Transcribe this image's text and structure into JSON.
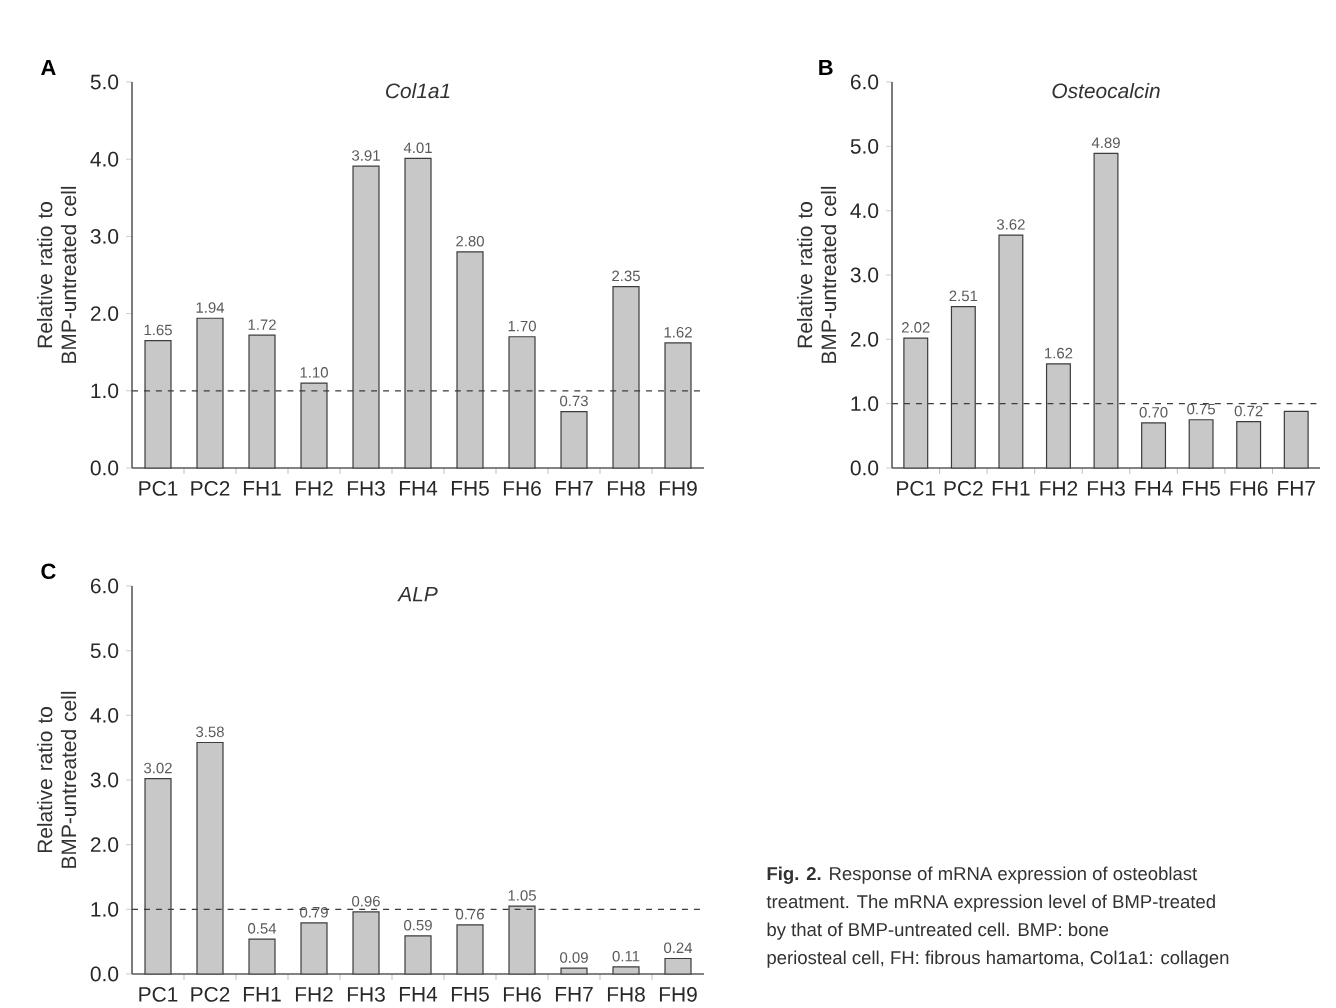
{
  "chart_data": [
    {
      "type": "bar",
      "title": "Col1a1",
      "ylabel": "Relative ratio to BMP-untreated cell",
      "annotations": [
        "A"
      ],
      "color": "#c8c8c8",
      "categories": [
        "PC1",
        "PC2",
        "FH1",
        "FH2",
        "FH3",
        "FH4",
        "FH5",
        "FH6",
        "FH7",
        "FH8",
        "FH9"
      ],
      "values": [
        1.65,
        1.94,
        1.72,
        1.1,
        3.91,
        4.01,
        2.8,
        1.7,
        0.73,
        2.35,
        1.62
      ],
      "value_labels": [
        "1.65",
        "1.94",
        "1.72",
        "1.10",
        "3.91",
        "4.01",
        "2.80",
        "1.70",
        "0.73",
        "2.35",
        "1.62"
      ],
      "ylim": [
        0,
        5
      ],
      "yticks": [
        {
          "value": 0,
          "label": "0.0"
        },
        {
          "value": 1,
          "label": "1.0"
        },
        {
          "value": 2,
          "label": "2.0"
        },
        {
          "value": 3,
          "label": "3.0"
        },
        {
          "value": 4,
          "label": "4.0"
        },
        {
          "value": 5,
          "label": "5.0"
        }
      ],
      "ref_lines": [
        {
          "axis": "y",
          "value": 1,
          "line_style": "dashed"
        }
      ]
    },
    {
      "type": "bar",
      "title": "Osteocalcin",
      "ylabel": "Relative ratio to BMP-untreated cell",
      "annotations": [
        "B"
      ],
      "color": "#c8c8c8",
      "categories": [
        "PC1",
        "PC2",
        "FH1",
        "FH2",
        "FH3",
        "FH4",
        "FH5",
        "FH6",
        "FH7"
      ],
      "values": [
        2.02,
        2.51,
        3.62,
        1.62,
        4.89,
        0.7,
        0.75,
        0.72,
        0.88
      ],
      "value_labels": [
        "2.02",
        "2.51",
        "3.62",
        "1.62",
        "4.89",
        "0.70",
        "0.75",
        "0.72",
        null
      ],
      "ylim": [
        0,
        6
      ],
      "yticks": [
        {
          "value": 0,
          "label": "0.0"
        },
        {
          "value": 1,
          "label": "1.0"
        },
        {
          "value": 2,
          "label": "2.0"
        },
        {
          "value": 3,
          "label": "3.0"
        },
        {
          "value": 4,
          "label": "4.0"
        },
        {
          "value": 5,
          "label": "5.0"
        },
        {
          "value": 6,
          "label": "6.0"
        }
      ],
      "ref_lines": [
        {
          "axis": "y",
          "value": 1,
          "line_style": "dashed"
        }
      ]
    },
    {
      "type": "bar",
      "title": "ALP",
      "ylabel": "Relative ratio to BMP-untreated cell",
      "color": "#c8c8c8",
      "annotations": [
        "C",
        "**Fig. 2.** Response of mRNA expression of osteoblast",
        "treatment. The mRNA expression level of BMP-treated",
        "by that of BMP-untreated cell. BMP: bone",
        "periosteal cell, FH: fibrous hamartoma, Col1a1: collagen"
      ],
      "categories": [
        "PC1",
        "PC2",
        "FH1",
        "FH2",
        "FH3",
        "FH4",
        "FH5",
        "FH6",
        "FH7",
        "FH8",
        "FH9"
      ],
      "values": [
        3.02,
        3.58,
        0.54,
        0.79,
        0.96,
        0.59,
        0.76,
        1.05,
        0.09,
        0.11,
        0.24
      ],
      "value_labels": [
        "3.02",
        "3.58",
        "0.54",
        "0.79",
        "0.96",
        "0.59",
        "0.76",
        "1.05",
        "0.09",
        "0.11",
        "0.24"
      ],
      "ylim": [
        0,
        6
      ],
      "yticks": [
        {
          "value": 0,
          "label": "0.0"
        },
        {
          "value": 1,
          "label": "1.0"
        },
        {
          "value": 2,
          "label": "2.0"
        },
        {
          "value": 3,
          "label": "3.0"
        },
        {
          "value": 4,
          "label": "4.0"
        },
        {
          "value": 5,
          "label": "5.0"
        },
        {
          "value": 6,
          "label": "6.0"
        }
      ],
      "ref_lines": [
        {
          "axis": "y",
          "value": 1,
          "line_style": "dashed"
        }
      ]
    }
  ]
}
